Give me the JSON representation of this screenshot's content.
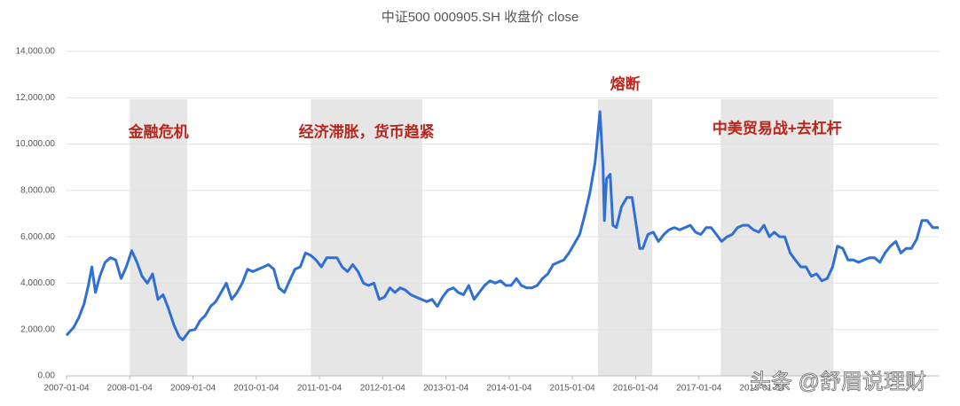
{
  "chart_data": {
    "type": "line",
    "title": "中证500 000905.SH 收盘价 close",
    "x": [
      "2007-01-04",
      "2007-02-15",
      "2007-03-15",
      "2007-04-15",
      "2007-05-10",
      "2007-05-30",
      "2007-06-20",
      "2007-07-15",
      "2007-08-15",
      "2007-09-15",
      "2007-10-15",
      "2007-11-15",
      "2007-12-15",
      "2008-01-15",
      "2008-02-15",
      "2008-03-15",
      "2008-04-15",
      "2008-05-15",
      "2008-06-15",
      "2008-07-15",
      "2008-08-15",
      "2008-09-15",
      "2008-10-15",
      "2008-11-05",
      "2008-12-15",
      "2009-01-15",
      "2009-02-15",
      "2009-03-15",
      "2009-04-15",
      "2009-05-15",
      "2009-06-15",
      "2009-07-15",
      "2009-08-15",
      "2009-09-15",
      "2009-10-15",
      "2009-11-15",
      "2009-12-15",
      "2010-01-15",
      "2010-02-15",
      "2010-03-15",
      "2010-04-15",
      "2010-05-15",
      "2010-06-15",
      "2010-07-15",
      "2010-08-15",
      "2010-09-15",
      "2010-10-15",
      "2010-11-15",
      "2010-12-15",
      "2011-01-15",
      "2011-02-15",
      "2011-03-15",
      "2011-04-15",
      "2011-05-15",
      "2011-06-15",
      "2011-07-15",
      "2011-08-15",
      "2011-09-15",
      "2011-10-15",
      "2011-11-15",
      "2011-12-15",
      "2012-01-15",
      "2012-02-15",
      "2012-03-15",
      "2012-04-15",
      "2012-05-15",
      "2012-06-15",
      "2012-07-15",
      "2012-08-15",
      "2012-09-15",
      "2012-10-15",
      "2012-11-15",
      "2012-12-15",
      "2013-01-15",
      "2013-02-15",
      "2013-03-15",
      "2013-04-15",
      "2013-05-15",
      "2013-06-15",
      "2013-07-15",
      "2013-08-15",
      "2013-09-15",
      "2013-10-15",
      "2013-11-15",
      "2013-12-15",
      "2014-01-15",
      "2014-02-15",
      "2014-03-15",
      "2014-04-15",
      "2014-05-15",
      "2014-06-15",
      "2014-07-15",
      "2014-08-15",
      "2014-09-15",
      "2014-10-15",
      "2014-11-15",
      "2014-12-15",
      "2015-01-15",
      "2015-02-15",
      "2015-03-15",
      "2015-04-15",
      "2015-05-15",
      "2015-06-12",
      "2015-06-30",
      "2015-07-08",
      "2015-07-20",
      "2015-08-10",
      "2015-08-26",
      "2015-09-15",
      "2015-10-15",
      "2015-11-15",
      "2015-12-15",
      "2016-01-28",
      "2016-02-15",
      "2016-03-15",
      "2016-04-15",
      "2016-05-15",
      "2016-06-15",
      "2016-07-15",
      "2016-08-15",
      "2016-09-15",
      "2016-10-15",
      "2016-11-15",
      "2016-12-15",
      "2017-01-15",
      "2017-02-15",
      "2017-03-15",
      "2017-04-15",
      "2017-05-15",
      "2017-06-15",
      "2017-07-15",
      "2017-08-15",
      "2017-09-15",
      "2017-10-15",
      "2017-11-15",
      "2017-12-15",
      "2018-01-15",
      "2018-02-15",
      "2018-03-15",
      "2018-04-15",
      "2018-05-15",
      "2018-06-15",
      "2018-07-15",
      "2018-08-15",
      "2018-09-15",
      "2018-10-15",
      "2018-11-15",
      "2018-12-15",
      "2019-01-15",
      "2019-02-15",
      "2019-03-15",
      "2019-04-15",
      "2019-05-15",
      "2019-06-15",
      "2019-07-15",
      "2019-08-15",
      "2019-09-15",
      "2019-10-15",
      "2019-11-15",
      "2019-12-15",
      "2020-01-15",
      "2020-02-15",
      "2020-03-15",
      "2020-04-15",
      "2020-05-15",
      "2020-06-15",
      "2020-07-15",
      "2020-08-15",
      "2020-09-15",
      "2020-10-20"
    ],
    "series": [
      {
        "name": "close",
        "color": "#2f6fd6",
        "values": [
          1750,
          2100,
          2500,
          3100,
          3900,
          4700,
          3600,
          4300,
          4900,
          5100,
          5000,
          4200,
          4700,
          5400,
          4900,
          4300,
          4000,
          4400,
          3300,
          3500,
          2900,
          2200,
          1700,
          1550,
          1950,
          2000,
          2400,
          2600,
          3000,
          3200,
          3600,
          4000,
          3300,
          3600,
          4000,
          4600,
          4500,
          4600,
          4700,
          4800,
          4600,
          3800,
          3600,
          4100,
          4600,
          4700,
          5300,
          5200,
          5000,
          4700,
          5100,
          5100,
          5100,
          4700,
          4500,
          4800,
          4500,
          4000,
          3900,
          4000,
          3300,
          3400,
          3800,
          3600,
          3800,
          3700,
          3500,
          3400,
          3300,
          3200,
          3300,
          3000,
          3400,
          3700,
          3800,
          3600,
          3500,
          3900,
          3300,
          3600,
          3900,
          4100,
          4000,
          4100,
          3900,
          3900,
          4200,
          3900,
          3800,
          3800,
          3900,
          4200,
          4400,
          4800,
          4900,
          5000,
          5300,
          5700,
          6100,
          6900,
          7900,
          9200,
          11400,
          9000,
          6700,
          8500,
          8700,
          6500,
          6400,
          7300,
          7700,
          7700,
          5500,
          5500,
          6100,
          6200,
          5800,
          6100,
          6300,
          6400,
          6300,
          6400,
          6500,
          6200,
          6100,
          6400,
          6400,
          6100,
          5800,
          6000,
          6100,
          6400,
          6500,
          6500,
          6300,
          6200,
          6500,
          6000,
          6200,
          6000,
          6000,
          5300,
          5000,
          4700,
          4700,
          4300,
          4400,
          4100,
          4200,
          4700,
          5600,
          5500,
          5000,
          5000,
          4900,
          5000,
          5100,
          5100,
          4900,
          5300,
          5600,
          5800,
          5300,
          5500,
          5500,
          5900,
          6700,
          6700,
          6400,
          6400
        ]
      }
    ],
    "xlim": [
      "2007-01-04",
      "2020-10-20"
    ],
    "xticks": [
      "2007-01-04",
      "2008-01-04",
      "2009-01-04",
      "2010-01-04",
      "2011-01-04",
      "2012-01-04",
      "2013-01-04",
      "2014-01-04",
      "2015-01-04",
      "2016-01-04",
      "2017-01-04",
      "2018-01-04"
    ],
    "ylim": [
      0,
      14000
    ],
    "yticks": [
      {
        "value": 0,
        "label": "0.00"
      },
      {
        "value": 2000,
        "label": "2,000.00"
      },
      {
        "value": 4000,
        "label": "4,000.00"
      },
      {
        "value": 6000,
        "label": "6,000.00"
      },
      {
        "value": 8000,
        "label": "8,000.00"
      },
      {
        "value": 10000,
        "label": "10,000.00"
      },
      {
        "value": 12000,
        "label": "12,000.00"
      },
      {
        "value": 14000,
        "label": "14,000.00"
      }
    ],
    "grid": true,
    "shaded_ranges": [
      {
        "start": "2008-01-04",
        "end": "2008-12-01",
        "label": "金融危机"
      },
      {
        "start": "2010-11-15",
        "end": "2012-08-20",
        "label": "经济滞胀，货币趋紧"
      },
      {
        "start": "2015-06-01",
        "end": "2016-04-10",
        "label": "熔断"
      },
      {
        "start": "2017-05-10",
        "end": "2019-02-20",
        "label": "中美贸易战+去杠杆"
      }
    ],
    "watermark": "头条 @舒眉说理财"
  }
}
